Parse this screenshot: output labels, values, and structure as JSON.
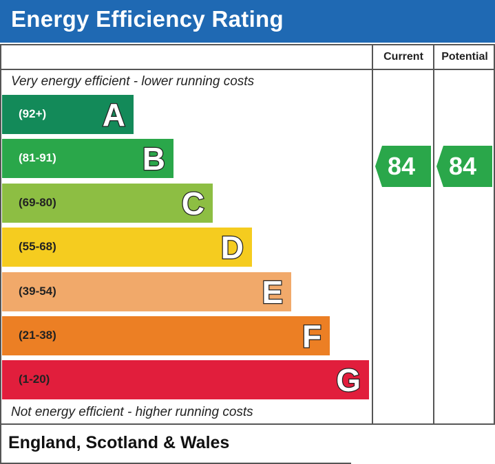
{
  "title": "Energy Efficiency Rating",
  "columns": {
    "current": "Current",
    "potential": "Potential"
  },
  "captions": {
    "top": "Very energy efficient - lower running costs",
    "bottom": "Not energy efficient - higher running costs"
  },
  "footer": "England, Scotland & Wales",
  "chart_data": {
    "type": "bar",
    "title": "Energy Efficiency Rating",
    "categories": [
      "A",
      "B",
      "C",
      "D",
      "E",
      "F",
      "G"
    ],
    "bands": [
      {
        "letter": "A",
        "range": "(92+)",
        "color": "#138a59",
        "text_color": "#ffffff"
      },
      {
        "letter": "B",
        "range": "(81-91)",
        "color": "#2aa74a",
        "text_color": "#ffffff"
      },
      {
        "letter": "C",
        "range": "(69-80)",
        "color": "#8dbe43",
        "text_color": "#222222"
      },
      {
        "letter": "D",
        "range": "(55-68)",
        "color": "#f5cc1f",
        "text_color": "#222222"
      },
      {
        "letter": "E",
        "range": "(39-54)",
        "color": "#f1a96a",
        "text_color": "#222222"
      },
      {
        "letter": "F",
        "range": "(21-38)",
        "color": "#ec7f24",
        "text_color": "#222222"
      },
      {
        "letter": "G",
        "range": "(1-20)",
        "color": "#e11e3c",
        "text_color": "#222222"
      }
    ],
    "series": [
      {
        "name": "Current",
        "value": 84,
        "band": "B",
        "color": "#2aa74a"
      },
      {
        "name": "Potential",
        "value": 84,
        "band": "B",
        "color": "#2aa74a"
      }
    ]
  }
}
